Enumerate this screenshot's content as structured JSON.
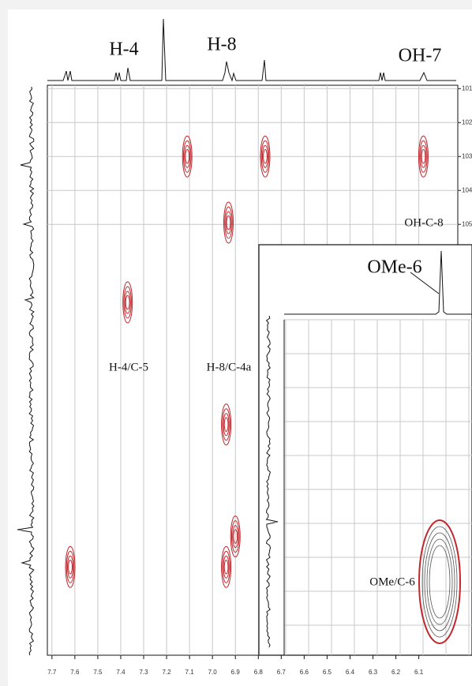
{
  "chart_data": {
    "type": "contour",
    "spectrum_labels": [
      "H-4",
      "H-8",
      "OH-7"
    ],
    "x": [
      7.11,
      6.77,
      6.08,
      6.93,
      7.37,
      6.94,
      6.9,
      6.94,
      7.62
    ],
    "y": [
      103.0,
      103.0,
      103.0,
      104.95,
      107.3,
      110.9,
      114.2,
      115.1,
      115.1
    ],
    "color": "#c0282d",
    "annotations": [
      "OH-C-8",
      "H-4/C-5",
      "H-8/C-4a"
    ],
    "xlim": [
      7.72,
      5.93
    ],
    "ylim": [
      100.9,
      117.7
    ],
    "xticks": [
      7.7,
      7.6,
      7.5,
      7.4,
      7.3,
      7.2,
      7.1,
      {
        "value": 7.0,
        "label": "7.0"
      },
      6.9,
      6.8,
      6.7,
      6.6,
      6.5,
      6.4,
      6.3,
      6.2,
      6.1
    ],
    "yticks": [
      101,
      102,
      103,
      104,
      105
    ],
    "grid": true
  },
  "inset": {
    "spectrum_label": "OMe-6",
    "annotation": "OMe/C-6"
  }
}
